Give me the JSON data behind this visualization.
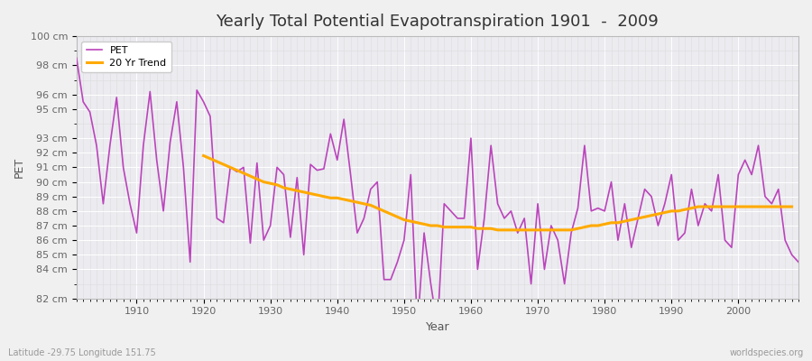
{
  "title": "Yearly Total Potential Evapotranspiration 1901  -  2009",
  "xlabel": "Year",
  "ylabel": "PET",
  "footnote_left": "Latitude -29.75 Longitude 151.75",
  "footnote_right": "worldspecies.org",
  "ylim": [
    82,
    100
  ],
  "ytick_positions": [
    82,
    84,
    85,
    86,
    87,
    88,
    89,
    90,
    91,
    92,
    93,
    95,
    96,
    98,
    100
  ],
  "ytick_labels": [
    "82 cm",
    "84 cm",
    "85 cm",
    "86 cm",
    "87 cm",
    "88 cm",
    "89 cm",
    "90 cm",
    "91 cm",
    "92 cm",
    "93 cm",
    "95 cm",
    "96 cm",
    "98 cm",
    "100 cm"
  ],
  "xtick_positions": [
    1910,
    1920,
    1930,
    1940,
    1950,
    1960,
    1970,
    1980,
    1990,
    2000
  ],
  "xlim": [
    1901,
    2009
  ],
  "pet_color": "#bb44bb",
  "trend_color": "#ffaa00",
  "fig_bg_color": "#f0f0f0",
  "ax_bg_color": "#ebebf0",
  "grid_color": "#ffffff",
  "legend_labels": [
    "PET",
    "20 Yr Trend"
  ],
  "years": [
    1901,
    1902,
    1903,
    1904,
    1905,
    1906,
    1907,
    1908,
    1909,
    1910,
    1911,
    1912,
    1913,
    1914,
    1915,
    1916,
    1917,
    1918,
    1919,
    1920,
    1921,
    1922,
    1923,
    1924,
    1925,
    1926,
    1927,
    1928,
    1929,
    1930,
    1931,
    1932,
    1933,
    1934,
    1935,
    1936,
    1937,
    1938,
    1939,
    1940,
    1941,
    1942,
    1943,
    1944,
    1945,
    1946,
    1947,
    1948,
    1949,
    1950,
    1951,
    1952,
    1953,
    1954,
    1955,
    1956,
    1957,
    1958,
    1959,
    1960,
    1961,
    1962,
    1963,
    1964,
    1965,
    1966,
    1967,
    1968,
    1969,
    1970,
    1971,
    1972,
    1973,
    1974,
    1975,
    1976,
    1977,
    1978,
    1979,
    1980,
    1981,
    1982,
    1983,
    1984,
    1985,
    1986,
    1987,
    1988,
    1989,
    1990,
    1991,
    1992,
    1993,
    1994,
    1995,
    1996,
    1997,
    1998,
    1999,
    2000,
    2001,
    2002,
    2003,
    2004,
    2005,
    2006,
    2007,
    2008,
    2009
  ],
  "pet_values": [
    98.5,
    95.5,
    94.8,
    92.5,
    88.5,
    92.5,
    95.8,
    91.0,
    88.5,
    86.5,
    92.5,
    96.2,
    91.5,
    88.0,
    92.7,
    95.5,
    91.0,
    84.5,
    96.3,
    95.5,
    94.5,
    87.5,
    87.2,
    91.0,
    90.7,
    91.0,
    85.8,
    91.3,
    86.0,
    87.0,
    91.0,
    90.5,
    86.2,
    90.3,
    85.0,
    91.2,
    90.8,
    90.9,
    93.3,
    91.5,
    94.3,
    90.5,
    86.5,
    87.5,
    89.5,
    90.0,
    83.3,
    83.3,
    84.5,
    86.0,
    90.5,
    80.0,
    86.5,
    83.0,
    80.0,
    88.5,
    88.0,
    87.5,
    87.5,
    93.0,
    84.0,
    87.5,
    92.5,
    88.5,
    87.5,
    88.0,
    86.5,
    87.5,
    83.0,
    88.5,
    84.0,
    87.0,
    86.0,
    83.0,
    86.5,
    88.2,
    92.5,
    88.0,
    88.2,
    88.0,
    90.0,
    86.0,
    88.5,
    85.5,
    87.5,
    89.5,
    89.0,
    87.0,
    88.5,
    90.5,
    86.0,
    86.5,
    89.5,
    87.0,
    88.5,
    88.0,
    90.5,
    86.0,
    85.5,
    90.5,
    91.5,
    90.5,
    92.5,
    89.0,
    88.5,
    89.5,
    86.0,
    85.0,
    84.5
  ],
  "trend_values": [
    null,
    null,
    null,
    null,
    null,
    null,
    null,
    null,
    null,
    null,
    null,
    null,
    null,
    null,
    null,
    null,
    null,
    null,
    null,
    91.8,
    91.6,
    91.4,
    91.2,
    91.0,
    90.8,
    90.6,
    90.4,
    90.2,
    90.0,
    89.9,
    89.8,
    89.6,
    89.5,
    89.4,
    89.3,
    89.2,
    89.1,
    89.0,
    88.9,
    88.9,
    88.8,
    88.7,
    88.6,
    88.5,
    88.4,
    88.2,
    88.0,
    87.8,
    87.6,
    87.4,
    87.3,
    87.2,
    87.1,
    87.0,
    87.0,
    86.9,
    86.9,
    86.9,
    86.9,
    86.9,
    86.8,
    86.8,
    86.8,
    86.7,
    86.7,
    86.7,
    86.7,
    86.7,
    86.7,
    86.7,
    86.7,
    86.7,
    86.7,
    86.7,
    86.7,
    86.8,
    86.9,
    87.0,
    87.0,
    87.1,
    87.2,
    87.2,
    87.3,
    87.4,
    87.5,
    87.6,
    87.7,
    87.8,
    87.9,
    88.0,
    88.0,
    88.1,
    88.2,
    88.3,
    88.3,
    88.3,
    88.3,
    88.3,
    88.3,
    88.3,
    88.3,
    88.3,
    88.3,
    88.3,
    88.3,
    88.3,
    88.3,
    88.3
  ]
}
